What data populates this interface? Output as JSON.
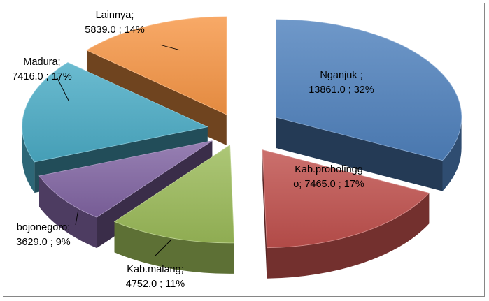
{
  "chart_data": {
    "type": "pie",
    "style": "3d-exploded",
    "title": "",
    "slices": [
      {
        "name": "Nganjuk",
        "value": 13861.0,
        "percent": 32,
        "color": "#4F81BD",
        "label_line1": "Nganjuk ;",
        "label_line2": "13861.0 ; 32%"
      },
      {
        "name": "Kab.probolinggo",
        "value": 7465.0,
        "percent": 17,
        "color": "#C0504D",
        "label_line1": "Kab.probolingg",
        "label_line2": "o;  7465.0 ; 17%"
      },
      {
        "name": "Kab.malang",
        "value": 4752.0,
        "percent": 11,
        "color": "#9BBB59",
        "label_line1": "Kab.malang;",
        "label_line2": "4752.0 ; 11%"
      },
      {
        "name": "bojonegoro",
        "value": 3629.0,
        "percent": 9,
        "color": "#8064A2",
        "label_line1": "bojonegoro;",
        "label_line2": "3629.0 ; 9%"
      },
      {
        "name": "Madura",
        "value": 7416.0,
        "percent": 17,
        "color": "#4BACC6",
        "label_line1": "Madura;",
        "label_line2": "7416.0 ; 17%"
      },
      {
        "name": "Lainnya",
        "value": 5839.0,
        "percent": 14,
        "color": "#F79646",
        "label_line1": "Lainnya;",
        "label_line2": "5839.0 ; 14%"
      }
    ],
    "legend": "none",
    "label_placement": [
      "inside",
      "inside",
      "outside",
      "outside",
      "outside",
      "outside"
    ]
  }
}
